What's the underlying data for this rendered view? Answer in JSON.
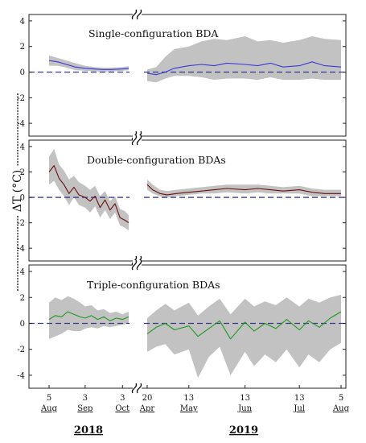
{
  "figure": {
    "ylabel": "ΔT (°C)",
    "year_labels": [
      "2018",
      "2019"
    ]
  },
  "x_ticks": [
    {
      "day": "5",
      "month": "Aug",
      "date": "2018-08-05"
    },
    {
      "day": "3",
      "month": "Sep",
      "date": "2018-09-03"
    },
    {
      "day": "3",
      "month": "Oct",
      "date": "2018-10-03"
    },
    {
      "day": "20",
      "month": "Apr",
      "date": "2019-04-20"
    },
    {
      "day": "13",
      "month": "May",
      "date": "2019-05-13"
    },
    {
      "day": "13",
      "month": "Jun",
      "date": "2019-06-13"
    },
    {
      "day": "13",
      "month": "Jul",
      "date": "2019-07-13"
    },
    {
      "day": "5",
      "month": "Aug",
      "date": "2019-08-05"
    }
  ],
  "chart_data": [
    {
      "type": "line",
      "title": "Single-configuration BDA",
      "ylabel": "ΔT (°C)",
      "ylim": [
        -5,
        4.5
      ],
      "yticks": [
        -4,
        -2,
        0,
        2,
        4
      ],
      "reference_line": 0,
      "colors": {
        "line": "#3a3ad6",
        "band": "#c2c2c2",
        "zero": "#3a3a8a"
      },
      "segments": [
        {
          "x": [
            "2018-08-05",
            "2018-08-12",
            "2018-08-19",
            "2018-08-26",
            "2018-09-03",
            "2018-09-10",
            "2018-09-17",
            "2018-09-24",
            "2018-10-03",
            "2018-10-08"
          ],
          "y": [
            0.9,
            0.8,
            0.6,
            0.4,
            0.3,
            0.25,
            0.2,
            0.2,
            0.25,
            0.3
          ],
          "band_upper": [
            1.3,
            1.1,
            0.9,
            0.7,
            0.5,
            0.4,
            0.35,
            0.35,
            0.4,
            0.45
          ],
          "band_lower": [
            0.5,
            0.5,
            0.35,
            0.15,
            0.1,
            0.05,
            0.05,
            0.05,
            0.1,
            0.15
          ]
        },
        {
          "x": [
            "2019-04-20",
            "2019-04-25",
            "2019-04-30",
            "2019-05-05",
            "2019-05-13",
            "2019-05-20",
            "2019-05-27",
            "2019-06-03",
            "2019-06-13",
            "2019-06-20",
            "2019-06-27",
            "2019-07-04",
            "2019-07-13",
            "2019-07-20",
            "2019-07-27",
            "2019-08-05"
          ],
          "y": [
            -0.1,
            -0.2,
            0.0,
            0.3,
            0.5,
            0.6,
            0.5,
            0.7,
            0.6,
            0.5,
            0.7,
            0.4,
            0.5,
            0.8,
            0.5,
            0.4
          ],
          "band_upper": [
            0.2,
            0.4,
            1.2,
            1.8,
            2.0,
            2.4,
            2.6,
            2.5,
            2.8,
            2.4,
            2.5,
            2.3,
            2.5,
            2.8,
            2.6,
            2.5
          ],
          "band_lower": [
            -0.7,
            -0.8,
            -0.5,
            -0.3,
            -0.3,
            -0.4,
            -0.6,
            -0.5,
            -0.5,
            -0.6,
            -0.4,
            -0.6,
            -0.6,
            -0.5,
            -0.6,
            -0.6
          ]
        }
      ]
    },
    {
      "type": "line",
      "title": "Double-configuration BDAs",
      "ylabel": "ΔT (°C)",
      "ylim": [
        -5,
        4.5
      ],
      "yticks": [
        -4,
        -2,
        0,
        2,
        4
      ],
      "reference_line": 0,
      "colors": {
        "line": "#6a1010",
        "band": "#c2c2c2",
        "zero": "#3a3a8a"
      },
      "segments": [
        {
          "x": [
            "2018-08-05",
            "2018-08-09",
            "2018-08-13",
            "2018-08-17",
            "2018-08-21",
            "2018-08-25",
            "2018-08-29",
            "2018-09-03",
            "2018-09-07",
            "2018-09-11",
            "2018-09-15",
            "2018-09-19",
            "2018-09-23",
            "2018-09-27",
            "2018-10-01",
            "2018-10-05",
            "2018-10-08"
          ],
          "y": [
            2.0,
            2.5,
            1.5,
            1.0,
            0.3,
            0.8,
            0.2,
            0.0,
            -0.3,
            0.1,
            -0.8,
            -0.2,
            -1.0,
            -0.5,
            -1.6,
            -1.8,
            -2.0
          ],
          "band_upper": [
            3.2,
            3.8,
            2.6,
            2.1,
            1.4,
            1.7,
            1.2,
            0.9,
            0.6,
            0.9,
            0.1,
            0.5,
            -0.3,
            0.1,
            -0.9,
            -1.1,
            -1.4
          ],
          "band_lower": [
            1.0,
            1.3,
            0.6,
            0.1,
            -0.6,
            0.0,
            -0.6,
            -0.8,
            -1.2,
            -0.7,
            -1.6,
            -1.0,
            -1.7,
            -1.2,
            -2.2,
            -2.4,
            -2.6
          ]
        },
        {
          "x": [
            "2019-04-20",
            "2019-04-23",
            "2019-04-27",
            "2019-05-01",
            "2019-05-06",
            "2019-05-13",
            "2019-05-20",
            "2019-05-27",
            "2019-06-03",
            "2019-06-13",
            "2019-06-20",
            "2019-06-27",
            "2019-07-04",
            "2019-07-13",
            "2019-07-20",
            "2019-07-27",
            "2019-08-05"
          ],
          "y": [
            1.0,
            0.6,
            0.3,
            0.2,
            0.3,
            0.4,
            0.5,
            0.6,
            0.7,
            0.6,
            0.7,
            0.6,
            0.5,
            0.6,
            0.4,
            0.3,
            0.3
          ],
          "band_upper": [
            1.4,
            1.0,
            0.6,
            0.5,
            0.6,
            0.7,
            0.8,
            0.9,
            1.0,
            1.0,
            1.0,
            0.9,
            0.8,
            0.9,
            0.7,
            0.6,
            0.6
          ],
          "band_lower": [
            0.6,
            0.3,
            0.1,
            0.0,
            0.1,
            0.2,
            0.3,
            0.3,
            0.4,
            0.3,
            0.4,
            0.3,
            0.3,
            0.3,
            0.1,
            0.1,
            0.1
          ]
        }
      ]
    },
    {
      "type": "line",
      "title": "Triple-configuration BDAs",
      "ylabel": "ΔT (°C)",
      "ylim": [
        -5,
        4.5
      ],
      "yticks": [
        -4,
        -2,
        0,
        2,
        4
      ],
      "reference_line": 0,
      "colors": {
        "line": "#1e9a1e",
        "band": "#c2c2c2",
        "zero": "#3a3a8a"
      },
      "segments": [
        {
          "x": [
            "2018-08-05",
            "2018-08-10",
            "2018-08-15",
            "2018-08-20",
            "2018-08-25",
            "2018-08-30",
            "2018-09-03",
            "2018-09-08",
            "2018-09-13",
            "2018-09-18",
            "2018-09-23",
            "2018-09-28",
            "2018-10-03",
            "2018-10-08"
          ],
          "y": [
            0.3,
            0.6,
            0.5,
            0.9,
            0.7,
            0.5,
            0.4,
            0.6,
            0.3,
            0.5,
            0.2,
            0.4,
            0.3,
            0.5
          ],
          "band_upper": [
            1.6,
            2.0,
            1.8,
            2.1,
            1.9,
            1.6,
            1.3,
            1.4,
            1.0,
            1.1,
            0.8,
            0.9,
            0.7,
            0.9
          ],
          "band_lower": [
            -1.2,
            -1.0,
            -0.8,
            -0.5,
            -0.6,
            -0.6,
            -0.4,
            -0.3,
            -0.4,
            -0.2,
            -0.3,
            -0.2,
            -0.1,
            0.0
          ]
        },
        {
          "x": [
            "2019-04-20",
            "2019-04-25",
            "2019-04-30",
            "2019-05-05",
            "2019-05-13",
            "2019-05-18",
            "2019-05-24",
            "2019-05-30",
            "2019-06-05",
            "2019-06-13",
            "2019-06-18",
            "2019-06-24",
            "2019-06-30",
            "2019-07-06",
            "2019-07-13",
            "2019-07-18",
            "2019-07-24",
            "2019-07-30",
            "2019-08-05"
          ],
          "y": [
            -0.8,
            -0.3,
            0.0,
            -0.5,
            -0.2,
            -1.0,
            -0.4,
            0.2,
            -1.2,
            0.1,
            -0.6,
            0.0,
            -0.4,
            0.3,
            -0.5,
            0.2,
            -0.3,
            0.4,
            0.9
          ],
          "band_upper": [
            0.4,
            1.0,
            1.5,
            1.0,
            1.6,
            0.6,
            1.3,
            1.9,
            0.7,
            1.9,
            1.3,
            1.7,
            1.4,
            2.0,
            1.3,
            1.9,
            1.6,
            2.0,
            2.2
          ],
          "band_lower": [
            -2.2,
            -1.8,
            -1.6,
            -2.4,
            -2.0,
            -4.2,
            -2.6,
            -1.8,
            -4.0,
            -2.2,
            -3.3,
            -2.4,
            -3.0,
            -2.0,
            -3.4,
            -2.4,
            -3.0,
            -2.0,
            -1.5
          ]
        }
      ]
    }
  ]
}
